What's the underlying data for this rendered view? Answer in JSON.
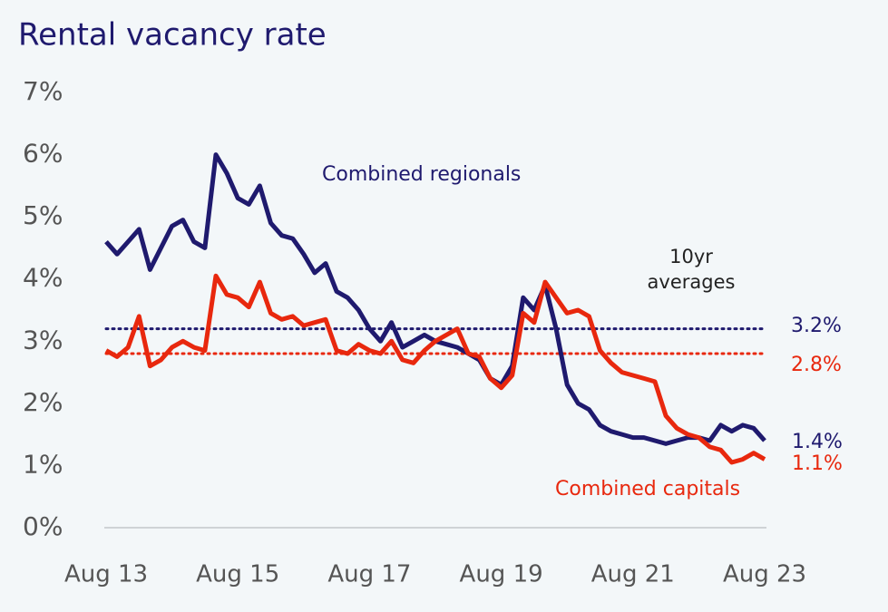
{
  "chart_data": {
    "type": "line",
    "title": "Rental vacancy rate",
    "categories": [
      "Aug 13",
      null,
      null,
      null,
      null,
      null,
      null,
      null,
      null,
      null,
      null,
      null,
      "Aug 15",
      null,
      null,
      null,
      null,
      null,
      null,
      null,
      null,
      null,
      null,
      null,
      "Aug 17",
      null,
      null,
      null,
      null,
      null,
      null,
      null,
      null,
      null,
      null,
      null,
      "Aug 19",
      null,
      null,
      null,
      null,
      null,
      null,
      null,
      null,
      null,
      null,
      null,
      "Aug 21",
      null,
      null,
      null,
      null,
      null,
      null,
      null,
      null,
      null,
      null,
      null,
      "Aug 23"
    ],
    "series": [
      {
        "name": "Combined regionals",
        "color": "#1f1a6e",
        "last_value_label": "1.4%",
        "values": [
          4.6,
          4.4,
          4.6,
          4.8,
          4.15,
          4.5,
          4.85,
          4.95,
          4.6,
          4.5,
          6.0,
          5.7,
          5.3,
          5.2,
          5.5,
          4.9,
          4.7,
          4.65,
          4.4,
          4.1,
          4.25,
          3.8,
          3.7,
          3.5,
          3.2,
          3.0,
          3.3,
          2.9,
          3.0,
          3.1,
          3.0,
          2.95,
          2.9,
          2.8,
          2.7,
          2.4,
          2.3,
          2.6,
          3.7,
          3.5,
          3.9,
          3.2,
          2.3,
          2.0,
          1.9,
          1.65,
          1.55,
          1.5,
          1.45,
          1.45,
          1.4,
          1.35,
          1.4,
          1.45,
          1.45,
          1.4,
          1.65,
          1.55,
          1.65,
          1.6,
          1.4
        ]
      },
      {
        "name": "Combined capitals",
        "color": "#e8280e",
        "last_value_label": "1.1%",
        "values": [
          2.85,
          2.75,
          2.9,
          3.4,
          2.6,
          2.7,
          2.9,
          3.0,
          2.9,
          2.85,
          4.05,
          3.75,
          3.7,
          3.55,
          3.95,
          3.45,
          3.35,
          3.4,
          3.25,
          3.3,
          3.35,
          2.85,
          2.8,
          2.95,
          2.85,
          2.8,
          3.0,
          2.7,
          2.65,
          2.85,
          3.0,
          3.1,
          3.2,
          2.8,
          2.75,
          2.4,
          2.25,
          2.45,
          3.45,
          3.3,
          3.95,
          3.7,
          3.45,
          3.5,
          3.4,
          2.85,
          2.65,
          2.5,
          2.45,
          2.4,
          2.35,
          1.8,
          1.6,
          1.5,
          1.45,
          1.3,
          1.25,
          1.05,
          1.1,
          1.2,
          1.1
        ]
      }
    ],
    "reference_lines": [
      {
        "value": 3.2,
        "label": "3.2%",
        "color": "#1f1a6e"
      },
      {
        "value": 2.8,
        "label": "2.8%",
        "color": "#e8280e"
      }
    ],
    "reference_annotation": [
      "10yr",
      "averages"
    ],
    "ylim": [
      0,
      7
    ],
    "yticks": [
      {
        "value": 0,
        "label": "0%"
      },
      {
        "value": 1,
        "label": "1%"
      },
      {
        "value": 2,
        "label": "2%"
      },
      {
        "value": 3,
        "label": "3%"
      },
      {
        "value": 4,
        "label": "4%"
      },
      {
        "value": 5,
        "label": "5%"
      },
      {
        "value": 6,
        "label": "6%"
      },
      {
        "value": 7,
        "label": "7%"
      }
    ],
    "grid": false
  }
}
